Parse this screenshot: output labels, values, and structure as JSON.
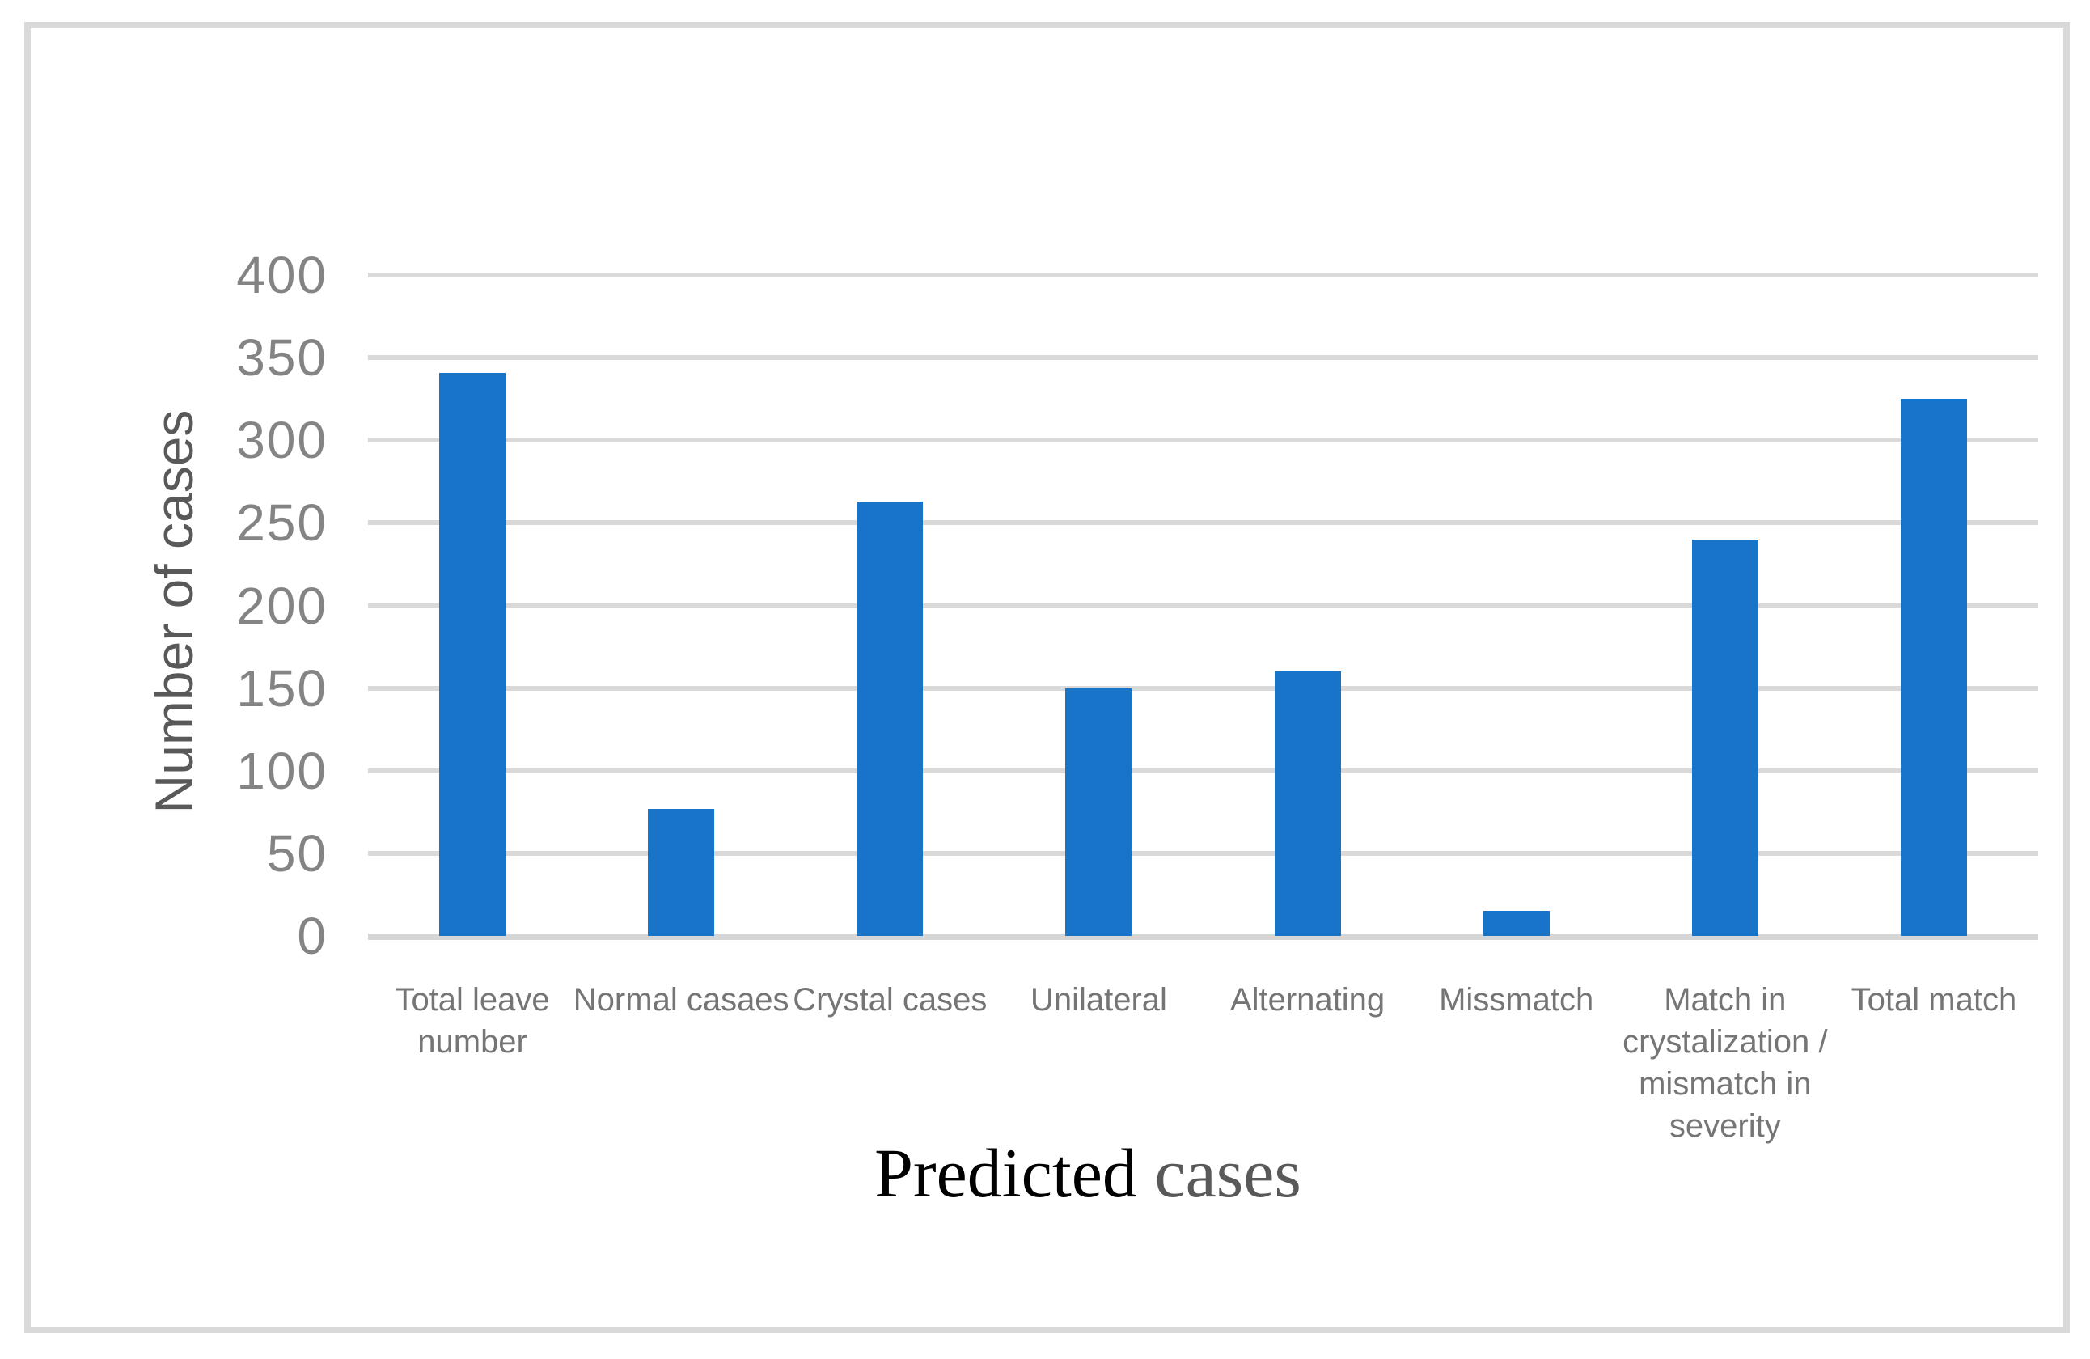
{
  "figure": {
    "background_color": "#FFFFFF",
    "border_color": "#D9D9D9"
  },
  "chart_data": {
    "type": "bar",
    "title": "",
    "categories": [
      "Total leave number",
      "Normal casaes",
      "Crystal cases",
      "Unilateral",
      "Alternating",
      "Missmatch",
      "Match in crystalization / mismatch in severity",
      "Total match"
    ],
    "values": [
      341,
      77,
      263,
      150,
      160,
      15,
      240,
      325
    ],
    "ylabel": "Number of cases",
    "xlabel_black_word": "Predicted",
    "xlabel_gray_word": "cases",
    "ylim": [
      0,
      400
    ],
    "yticks": [
      0,
      50,
      100,
      150,
      200,
      250,
      300,
      350,
      400
    ],
    "grid": "horizontal",
    "legend": "none",
    "bar_color": "#1774C8",
    "gridline_color": "#D9D9D9",
    "axis_line_color": "#D6D6D6",
    "tick_label_color": "#848484",
    "category_label_color": "#757575",
    "ylabel_color": "#595959"
  }
}
